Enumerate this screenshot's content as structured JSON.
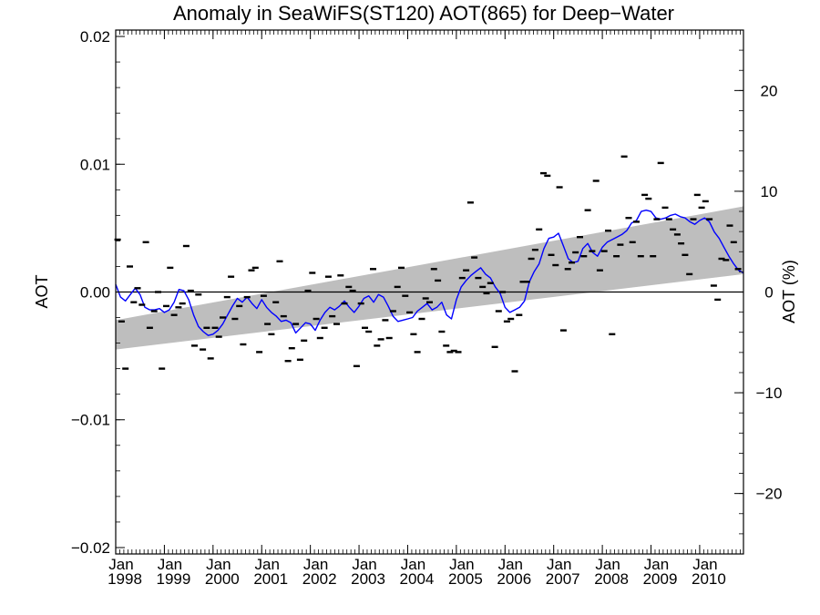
{
  "chart_data": {
    "type": "scatter",
    "title": "Anomaly in SeaWiFS(ST120) AOT(865) for Deep−Water",
    "ylabel_left": "AOT",
    "ylabel_right": "AOT (%)",
    "xlim": [
      1998.0,
      2010.9
    ],
    "ylim_left": [
      -0.0205,
      0.0205
    ],
    "ylim_right": [
      -26,
      26
    ],
    "yticks_left": [
      {
        "v": 0.02,
        "label": "0.02"
      },
      {
        "v": 0.01,
        "label": "0.01"
      },
      {
        "v": 0.0,
        "label": "0.00"
      },
      {
        "v": -0.01,
        "label": "−0.01"
      },
      {
        "v": -0.02,
        "label": "−0.02"
      }
    ],
    "yticks_right": [
      {
        "v": 20,
        "label": "20"
      },
      {
        "v": 10,
        "label": "10"
      },
      {
        "v": 0,
        "label": "0"
      },
      {
        "v": -10,
        "label": "−10"
      },
      {
        "v": -20,
        "label": "−20"
      }
    ],
    "xticks": [
      {
        "v": 1998,
        "month": "Jan",
        "year": "1998"
      },
      {
        "v": 1999,
        "month": "Jan",
        "year": "1999"
      },
      {
        "v": 2000,
        "month": "Jan",
        "year": "2000"
      },
      {
        "v": 2001,
        "month": "Jan",
        "year": "2001"
      },
      {
        "v": 2002,
        "month": "Jan",
        "year": "2002"
      },
      {
        "v": 2003,
        "month": "Jan",
        "year": "2003"
      },
      {
        "v": 2004,
        "month": "Jan",
        "year": "2004"
      },
      {
        "v": 2005,
        "month": "Jan",
        "year": "2005"
      },
      {
        "v": 2006,
        "month": "Jan",
        "year": "2006"
      },
      {
        "v": 2007,
        "month": "Jan",
        "year": "2007"
      },
      {
        "v": 2008,
        "month": "Jan",
        "year": "2008"
      },
      {
        "v": 2009,
        "month": "Jan",
        "year": "2009"
      },
      {
        "v": 2010,
        "month": "Jan",
        "year": "2010"
      }
    ],
    "zero_line": 0.0,
    "trend_band": {
      "x": [
        1998.0,
        2010.9
      ],
      "lower": [
        -0.0045,
        0.0014
      ],
      "upper": [
        -0.0022,
        0.0067
      ],
      "color": "#bebebe"
    },
    "colors": {
      "monthly_points": "#000000",
      "running_mean": "#0000ff",
      "zero_line": "#000000",
      "band": "#bebebe"
    },
    "series": [
      {
        "marker": "dash",
        "x": [
          1998.04,
          1998.12,
          1998.2,
          1998.29,
          1998.37,
          1998.45,
          1998.54,
          1998.62,
          1998.7,
          1998.79,
          1998.87,
          1998.95,
          1999.04,
          1999.12,
          1999.2,
          1999.29,
          1999.37,
          1999.45,
          1999.54,
          1999.62,
          1999.7,
          1999.79,
          1999.87,
          1999.95,
          2000.04,
          2000.12,
          2000.2,
          2000.29,
          2000.37,
          2000.45,
          2000.54,
          2000.62,
          2000.7,
          2000.79,
          2000.87,
          2000.95,
          2001.04,
          2001.12,
          2001.2,
          2001.29,
          2001.37,
          2001.45,
          2001.54,
          2001.62,
          2001.7,
          2001.79,
          2001.87,
          2001.95,
          2002.04,
          2002.12,
          2002.2,
          2002.29,
          2002.37,
          2002.45,
          2002.54,
          2002.62,
          2002.7,
          2002.79,
          2002.87,
          2002.95,
          2003.04,
          2003.12,
          2003.2,
          2003.29,
          2003.37,
          2003.45,
          2003.54,
          2003.62,
          2003.7,
          2003.79,
          2003.87,
          2003.95,
          2004.04,
          2004.12,
          2004.2,
          2004.29,
          2004.37,
          2004.45,
          2004.54,
          2004.62,
          2004.7,
          2004.79,
          2004.87,
          2004.95,
          2005.04,
          2005.12,
          2005.2,
          2005.29,
          2005.37,
          2005.45,
          2005.54,
          2005.62,
          2005.7,
          2005.79,
          2005.87,
          2005.95,
          2006.04,
          2006.12,
          2006.2,
          2006.29,
          2006.37,
          2006.45,
          2006.54,
          2006.62,
          2006.7,
          2006.79,
          2006.87,
          2006.95,
          2007.04,
          2007.12,
          2007.2,
          2007.29,
          2007.37,
          2007.45,
          2007.54,
          2007.62,
          2007.7,
          2007.79,
          2007.87,
          2007.95,
          2008.04,
          2008.12,
          2008.2,
          2008.29,
          2008.37,
          2008.45,
          2008.54,
          2008.62,
          2008.7,
          2008.79,
          2008.87,
          2008.95,
          2009.04,
          2009.12,
          2009.2,
          2009.29,
          2009.37,
          2009.45,
          2009.54,
          2009.62,
          2009.7,
          2009.79,
          2009.87,
          2009.95,
          2010.04,
          2010.12,
          2010.2,
          2010.29,
          2010.37,
          2010.45,
          2010.54,
          2010.62,
          2010.7,
          2010.79
        ],
        "y": [
          0.0041,
          -0.0023,
          -0.006,
          0.002,
          -0.0008,
          0.0003,
          -0.001,
          0.0039,
          -0.0028,
          -0.0015,
          0.0,
          -0.006,
          -0.0011,
          0.0019,
          -0.0018,
          -0.0012,
          -0.0009,
          0.0036,
          0.0001,
          -0.0042,
          -0.0002,
          -0.0045,
          -0.0028,
          -0.0052,
          -0.0028,
          -0.0035,
          -0.002,
          -0.0004,
          0.0012,
          -0.0021,
          -0.0011,
          -0.0041,
          -0.0004,
          0.0017,
          0.0019,
          -0.0047,
          -0.0003,
          -0.0025,
          -0.0033,
          -0.0008,
          0.0024,
          -0.0019,
          -0.0054,
          -0.0044,
          -0.0025,
          -0.0053,
          -0.0038,
          0.0001,
          0.0015,
          -0.0021,
          -0.0036,
          -0.0028,
          0.0012,
          -0.0019,
          -0.0025,
          0.0013,
          -0.0009,
          0.0004,
          0.0001,
          -0.0058,
          -0.0009,
          -0.0028,
          -0.0031,
          0.0018,
          -0.0042,
          -0.0037,
          -0.0022,
          -0.0036,
          -0.0015,
          0.0004,
          0.0019,
          -0.0003,
          -0.0016,
          -0.0033,
          -0.0047,
          -0.0021,
          -0.0005,
          -0.0008,
          0.0018,
          0.0009,
          -0.0031,
          -0.0042,
          -0.0047,
          -0.0046,
          -0.0047,
          0.0011,
          0.0017,
          0.007,
          0.0027,
          0.0011,
          0.0004,
          -0.0001,
          0.0007,
          -0.0043,
          -0.0015,
          0.0,
          -0.0023,
          -0.0021,
          -0.0062,
          -0.0018,
          0.0008,
          0.0008,
          0.0026,
          0.0033,
          0.0049,
          0.0093,
          0.0091,
          0.0029,
          0.0021,
          0.0082,
          -0.003,
          0.0018,
          0.0023,
          0.0031,
          0.0043,
          0.0028,
          0.0064,
          0.0032,
          0.0087,
          0.0017,
          0.0032,
          0.0048,
          -0.0033,
          0.0028,
          0.0037,
          0.0106,
          0.0058,
          0.0039,
          0.0055,
          0.0028,
          0.0076,
          0.0073,
          0.0028,
          0.0057,
          0.0101,
          0.0066,
          0.0057,
          0.0049,
          0.0045,
          0.0038,
          0.0029,
          0.0014,
          0.0057,
          0.0076,
          0.0066,
          0.0071,
          0.0057,
          0.0005,
          -0.0006,
          0.0026,
          0.0025,
          0.0052,
          0.0039,
          0.0018
        ]
      },
      {
        "marker": "line",
        "x": [
          1998.0,
          1998.1,
          1998.2,
          1998.3,
          1998.4,
          1998.5,
          1998.6,
          1998.7,
          1998.8,
          1998.9,
          1999.0,
          1999.1,
          1999.2,
          1999.3,
          1999.4,
          1999.5,
          1999.6,
          1999.7,
          1999.8,
          1999.9,
          2000.0,
          2000.1,
          2000.2,
          2000.3,
          2000.4,
          2000.5,
          2000.6,
          2000.7,
          2000.8,
          2000.9,
          2001.0,
          2001.1,
          2001.2,
          2001.3,
          2001.4,
          2001.5,
          2001.6,
          2001.7,
          2001.8,
          2001.9,
          2002.0,
          2002.1,
          2002.2,
          2002.3,
          2002.4,
          2002.5,
          2002.6,
          2002.7,
          2002.8,
          2002.9,
          2003.0,
          2003.1,
          2003.2,
          2003.3,
          2003.4,
          2003.5,
          2003.6,
          2003.7,
          2003.8,
          2003.9,
          2004.0,
          2004.1,
          2004.2,
          2004.3,
          2004.4,
          2004.5,
          2004.6,
          2004.7,
          2004.8,
          2004.9,
          2005.0,
          2005.1,
          2005.2,
          2005.3,
          2005.4,
          2005.5,
          2005.6,
          2005.7,
          2005.8,
          2005.9,
          2006.0,
          2006.1,
          2006.2,
          2006.3,
          2006.4,
          2006.5,
          2006.6,
          2006.7,
          2006.8,
          2006.9,
          2007.0,
          2007.1,
          2007.2,
          2007.3,
          2007.4,
          2007.5,
          2007.6,
          2007.7,
          2007.8,
          2007.9,
          2008.0,
          2008.1,
          2008.2,
          2008.3,
          2008.4,
          2008.5,
          2008.6,
          2008.7,
          2008.8,
          2008.9,
          2009.0,
          2009.1,
          2009.2,
          2009.3,
          2009.4,
          2009.5,
          2009.6,
          2009.7,
          2009.8,
          2009.9,
          2010.0,
          2010.1,
          2010.2,
          2010.3,
          2010.4,
          2010.5,
          2010.6,
          2010.7,
          2010.8,
          2010.9
        ],
        "y": [
          0.0006,
          -0.0004,
          -0.0007,
          -0.0002,
          0.0003,
          -0.0002,
          -0.0012,
          -0.0014,
          -0.0014,
          -0.0013,
          -0.0016,
          -0.0014,
          -0.0008,
          0.0002,
          0.0001,
          -0.0006,
          -0.0018,
          -0.0027,
          -0.0031,
          -0.0034,
          -0.0033,
          -0.003,
          -0.0025,
          -0.0018,
          -0.0011,
          -0.0005,
          -0.0008,
          -0.0004,
          -0.0009,
          -0.0013,
          -0.0006,
          -0.0012,
          -0.0016,
          -0.0019,
          -0.0023,
          -0.0022,
          -0.0024,
          -0.0032,
          -0.0028,
          -0.0024,
          -0.0025,
          -0.003,
          -0.0022,
          -0.0016,
          -0.0012,
          -0.0014,
          -0.0011,
          -0.0007,
          -0.0012,
          -0.0016,
          -0.0011,
          -0.0005,
          -0.0003,
          -0.0008,
          -0.0002,
          -0.0004,
          -0.0011,
          -0.0019,
          -0.0023,
          -0.0022,
          -0.0021,
          -0.002,
          -0.0015,
          -0.0012,
          -0.0009,
          -0.0014,
          -0.0012,
          -0.0008,
          -0.0018,
          -0.0021,
          -0.0006,
          0.0004,
          0.0009,
          0.0013,
          0.0016,
          0.0019,
          0.0014,
          0.0011,
          0.0004,
          -0.0001,
          -0.0012,
          -0.0016,
          -0.0014,
          -0.0012,
          -0.0007,
          0.0008,
          0.0016,
          0.0022,
          0.0034,
          0.0042,
          0.0043,
          0.0046,
          0.0036,
          0.0026,
          0.0023,
          0.0024,
          0.0034,
          0.0038,
          0.0031,
          0.0028,
          0.0035,
          0.0039,
          0.0041,
          0.0043,
          0.0045,
          0.0048,
          0.0054,
          0.0056,
          0.0063,
          0.0064,
          0.0063,
          0.0058,
          0.0057,
          0.0058,
          0.006,
          0.0061,
          0.0059,
          0.0058,
          0.0055,
          0.0053,
          0.0056,
          0.0058,
          0.0055,
          0.0047,
          0.0042,
          0.0035,
          0.0028,
          0.0022,
          0.0017,
          0.0015
        ]
      }
    ]
  }
}
